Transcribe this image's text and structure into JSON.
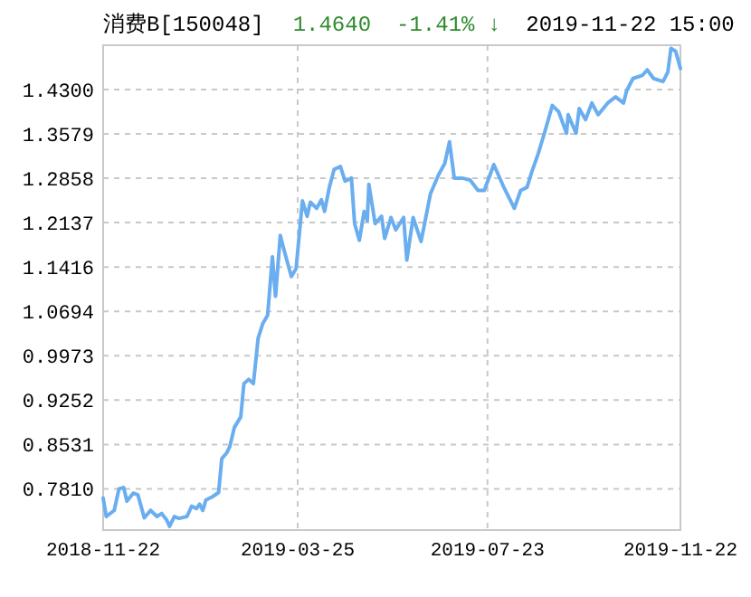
{
  "chart_data": {
    "type": "line",
    "title": "消费B[150048]",
    "annotations": [
      "1.4640",
      "-1.41% ↓",
      "2019-11-22 15:00"
    ],
    "xlim": [
      "2018-11-22",
      "2019-11-22"
    ],
    "ylim": [
      0.714,
      1.502
    ],
    "xticks": [
      {
        "value": "2018-11-22",
        "label": "2018-11-22"
      },
      {
        "value": "2019-03-25",
        "label": "2019-03-25"
      },
      {
        "value": "2019-07-23",
        "label": "2019-07-23"
      },
      {
        "value": "2019-11-22",
        "label": "2019-11-22"
      }
    ],
    "yticks": [
      {
        "value": 0.781,
        "label": "0.7810"
      },
      {
        "value": 0.8531,
        "label": "0.8531"
      },
      {
        "value": 0.9252,
        "label": "0.9252"
      },
      {
        "value": 0.9973,
        "label": "0.9973"
      },
      {
        "value": 1.0694,
        "label": "1.0694"
      },
      {
        "value": 1.1416,
        "label": "1.1416"
      },
      {
        "value": 1.2137,
        "label": "1.2137"
      },
      {
        "value": 1.2858,
        "label": "1.2858"
      },
      {
        "value": 1.3579,
        "label": "1.3579"
      },
      {
        "value": 1.43,
        "label": "1.4300"
      }
    ],
    "grid": true,
    "marker": "none",
    "line_style": "solid",
    "x": [
      "2018-11-22",
      "2018-11-24",
      "2018-11-29",
      "2018-12-02",
      "2018-12-05",
      "2018-12-07",
      "2018-12-11",
      "2018-12-14",
      "2018-12-18",
      "2018-12-22",
      "2018-12-26",
      "2018-12-29",
      "2019-01-01",
      "2019-01-03",
      "2019-01-06",
      "2019-01-09",
      "2019-01-14",
      "2019-01-17",
      "2019-01-20",
      "2019-01-22",
      "2019-01-24",
      "2019-01-26",
      "2019-01-30",
      "2019-02-03",
      "2019-02-05",
      "2019-02-08",
      "2019-02-10",
      "2019-02-13",
      "2019-02-17",
      "2019-02-19",
      "2019-02-22",
      "2019-02-25",
      "2019-02-28",
      "2019-03-03",
      "2019-03-06",
      "2019-03-09",
      "2019-03-11",
      "2019-03-14",
      "2019-03-17",
      "2019-03-21",
      "2019-03-24",
      "2019-03-28",
      "2019-03-31",
      "2019-04-02",
      "2019-04-06",
      "2019-04-09",
      "2019-04-11",
      "2019-04-14",
      "2019-04-17",
      "2019-04-21",
      "2019-04-24",
      "2019-04-28",
      "2019-04-30",
      "2019-05-03",
      "2019-05-06",
      "2019-05-08",
      "2019-05-09",
      "2019-05-13",
      "2019-05-17",
      "2019-05-19",
      "2019-05-23",
      "2019-05-26",
      "2019-05-31",
      "2019-06-02",
      "2019-06-06",
      "2019-06-11",
      "2019-06-17",
      "2019-06-22",
      "2019-06-26",
      "2019-06-29",
      "2019-07-02",
      "2019-07-07",
      "2019-07-12",
      "2019-07-17",
      "2019-07-21",
      "2019-07-27",
      "2019-08-02",
      "2019-08-07",
      "2019-08-09",
      "2019-08-13",
      "2019-08-17",
      "2019-08-20",
      "2019-08-24",
      "2019-08-28",
      "2019-09-02",
      "2019-09-06",
      "2019-09-11",
      "2019-09-12",
      "2019-09-17",
      "2019-09-19",
      "2019-09-23",
      "2019-09-27",
      "2019-10-01",
      "2019-10-07",
      "2019-10-12",
      "2019-10-17",
      "2019-10-19",
      "2019-10-23",
      "2019-10-29",
      "2019-11-01",
      "2019-11-05",
      "2019-11-11",
      "2019-11-14",
      "2019-11-16",
      "2019-11-19",
      "2019-11-22"
    ],
    "series": [
      {
        "color": "#6aaef0",
        "values": [
          0.766,
          0.736,
          0.746,
          0.781,
          0.783,
          0.761,
          0.774,
          0.771,
          0.734,
          0.746,
          0.736,
          0.741,
          0.731,
          0.72,
          0.736,
          0.733,
          0.736,
          0.753,
          0.749,
          0.756,
          0.746,
          0.763,
          0.768,
          0.775,
          0.83,
          0.839,
          0.849,
          0.881,
          0.898,
          0.952,
          0.959,
          0.952,
          1.026,
          1.05,
          1.063,
          1.158,
          1.094,
          1.193,
          1.163,
          1.126,
          1.139,
          1.249,
          1.224,
          1.247,
          1.237,
          1.251,
          1.232,
          1.271,
          1.3,
          1.305,
          1.281,
          1.286,
          1.212,
          1.185,
          1.232,
          1.217,
          1.276,
          1.212,
          1.224,
          1.188,
          1.222,
          1.202,
          1.222,
          1.153,
          1.222,
          1.183,
          1.261,
          1.291,
          1.31,
          1.345,
          1.286,
          1.286,
          1.283,
          1.266,
          1.266,
          1.308,
          1.273,
          1.247,
          1.237,
          1.266,
          1.271,
          1.296,
          1.325,
          1.359,
          1.404,
          1.394,
          1.359,
          1.389,
          1.359,
          1.399,
          1.381,
          1.408,
          1.389,
          1.408,
          1.418,
          1.408,
          1.428,
          1.448,
          1.453,
          1.462,
          1.448,
          1.443,
          1.458,
          1.497,
          1.492,
          1.464
        ]
      }
    ]
  }
}
